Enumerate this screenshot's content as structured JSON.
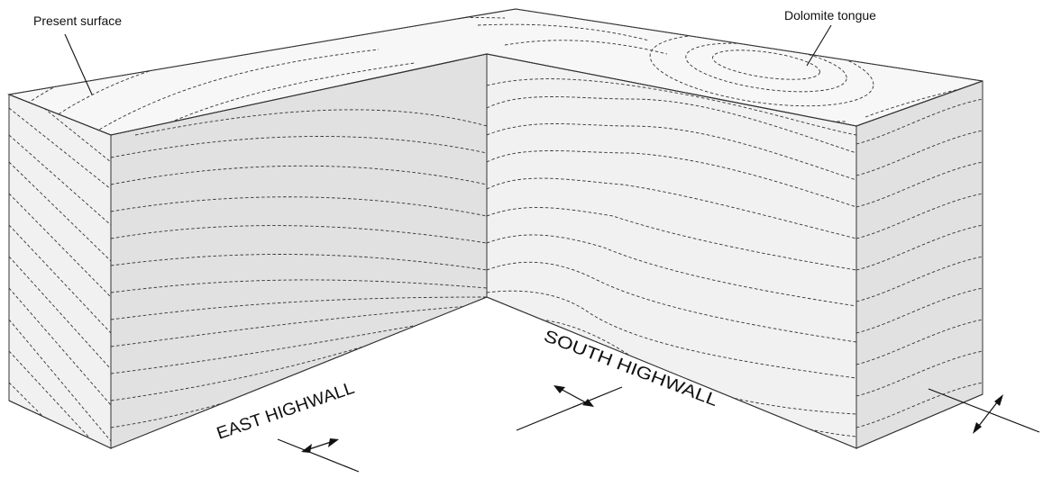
{
  "labels": {
    "present_surface": "Present surface",
    "dolomite_tongue": "Dolomite tongue",
    "east_highwall": "EAST HIGHWALL",
    "south_highwall": "SOUTH HIGHWALL"
  },
  "colors": {
    "top_surface": "#f7f7f7",
    "lit_face": "#f1f1f1",
    "shaded_face": "#e1e1e1",
    "line": "#333333"
  }
}
